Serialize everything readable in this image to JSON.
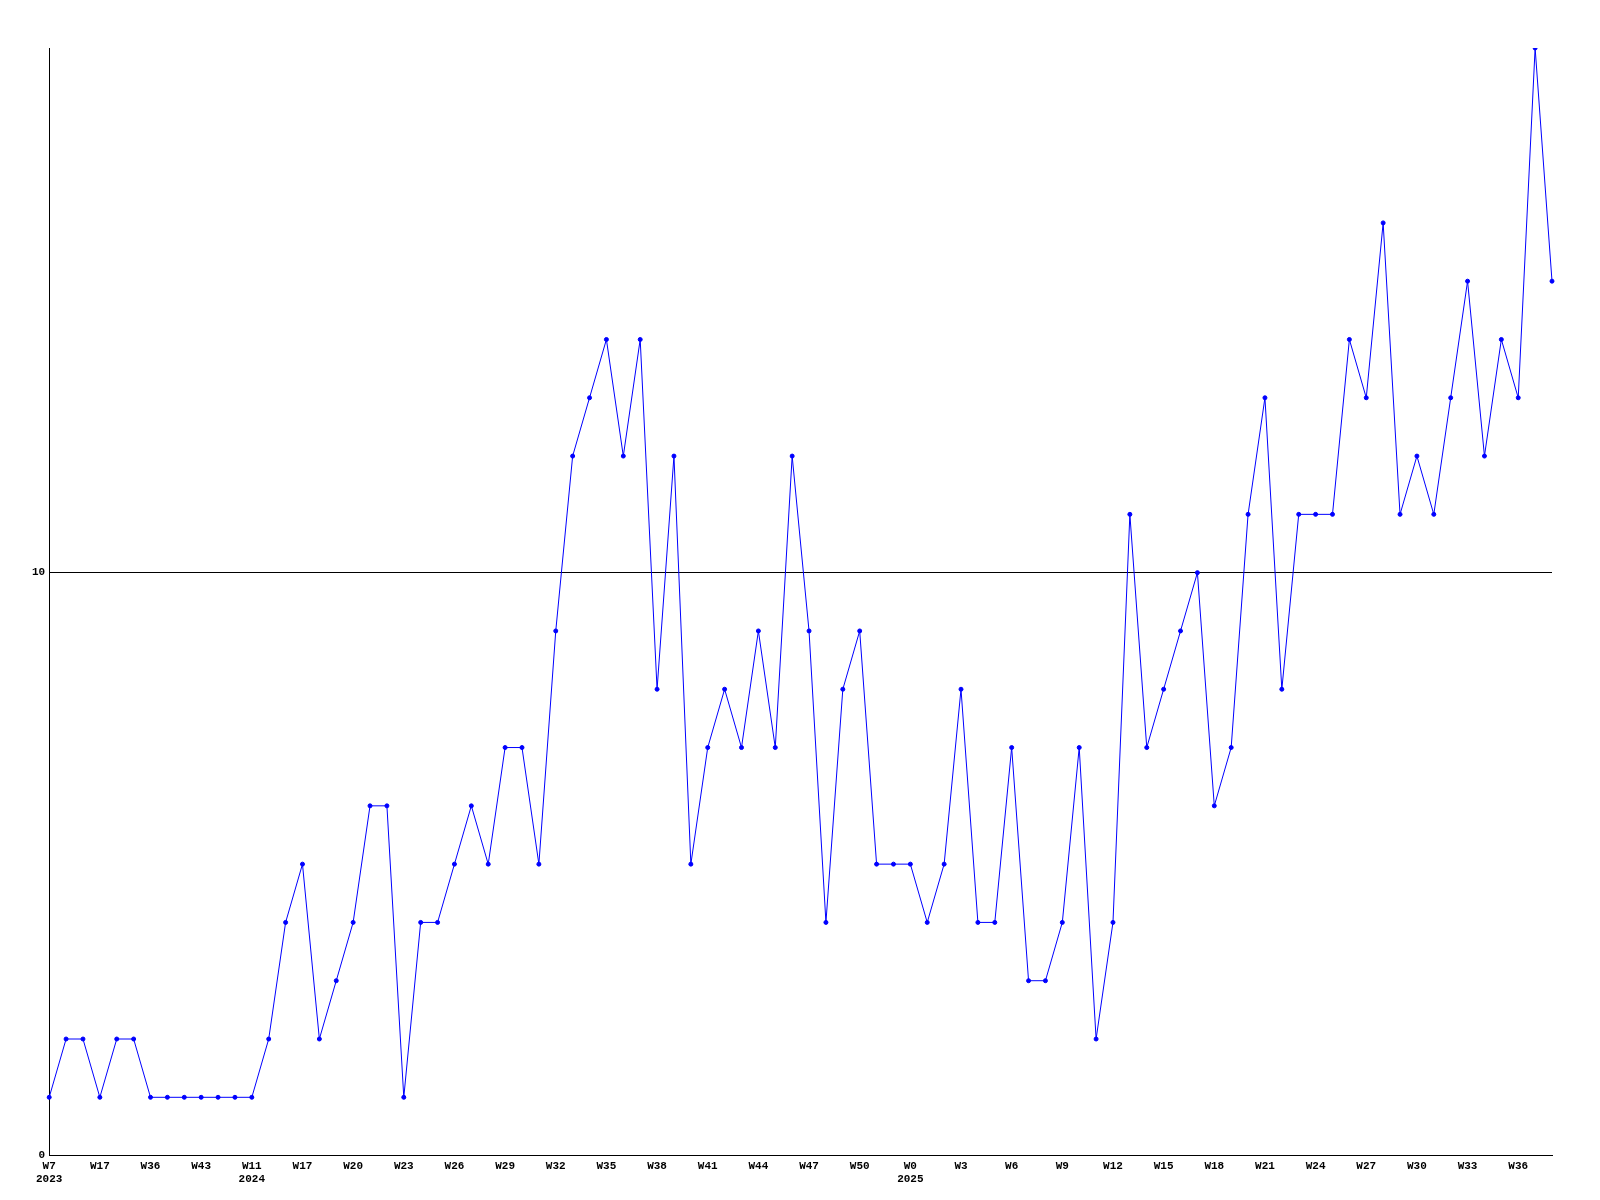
{
  "chart_data": {
    "type": "line",
    "categories": [
      "W7\n2023",
      null,
      null,
      "W17",
      null,
      null,
      "W36",
      null,
      null,
      "W43",
      null,
      null,
      "W11\n2024",
      null,
      null,
      "W17",
      null,
      null,
      "W20",
      null,
      null,
      "W23",
      null,
      null,
      "W26",
      null,
      null,
      "W29",
      null,
      null,
      "W32",
      null,
      null,
      "W35",
      null,
      null,
      "W38",
      null,
      null,
      "W41",
      null,
      null,
      "W44",
      null,
      null,
      "W47",
      null,
      null,
      "W50",
      null,
      null,
      "W0\n2025",
      null,
      null,
      "W3",
      null,
      null,
      "W6",
      null,
      null,
      "W9",
      null,
      null,
      "W12",
      null,
      null,
      "W15",
      null,
      null,
      "W18",
      null,
      null,
      "W21",
      null,
      null,
      "W24",
      null,
      null,
      "W27",
      null,
      null,
      "W30",
      null,
      null,
      "W33",
      null,
      null,
      "W36",
      null,
      null
    ],
    "series": [
      {
        "color": "#0000ff",
        "values": [
          1,
          2,
          2,
          1,
          2,
          2,
          1,
          1,
          1,
          1,
          1,
          1,
          1,
          2,
          4,
          5,
          2,
          3,
          4,
          6,
          6,
          1,
          4,
          4,
          5,
          6,
          5,
          7,
          7,
          5,
          9,
          12,
          13,
          14,
          12,
          14,
          8,
          12,
          5,
          7,
          8,
          7,
          9,
          7,
          12,
          9,
          4,
          8,
          9,
          5,
          5,
          5,
          4,
          5,
          8,
          4,
          4,
          7,
          3,
          3,
          4,
          7,
          2,
          4,
          11,
          7,
          8,
          9,
          10,
          6,
          7,
          11,
          13,
          8,
          11,
          11,
          11,
          14,
          13,
          16,
          11,
          12,
          11,
          13,
          15,
          12,
          14,
          13,
          19,
          15
        ]
      }
    ],
    "ylim": [
      0,
      19
    ],
    "yticks": [
      0,
      10
    ],
    "grid": "y",
    "marker": "circle",
    "line_style": "solid",
    "legend": false
  }
}
